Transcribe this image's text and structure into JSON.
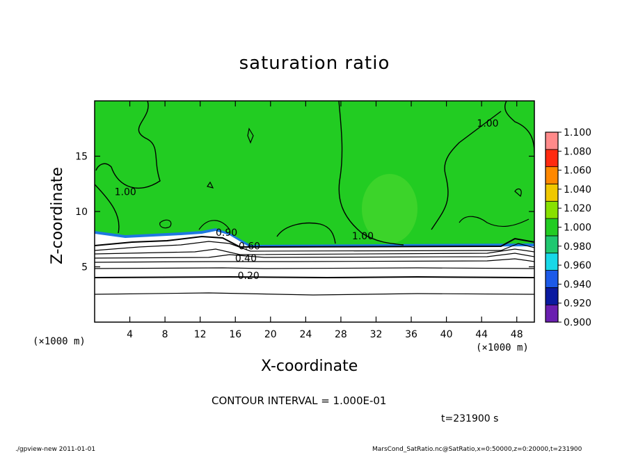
{
  "chart_data": {
    "type": "contour",
    "title": "saturation ratio",
    "xlabel": "X-coordinate",
    "ylabel": "Z-coordinate",
    "x_unit_label": "(×1000 m)",
    "xlim": [
      0,
      50
    ],
    "ylim": [
      0,
      20
    ],
    "xticks": [
      4,
      8,
      12,
      16,
      20,
      24,
      28,
      32,
      36,
      40,
      44,
      48
    ],
    "yticks": [
      5,
      10,
      15
    ],
    "colorbar": {
      "levels": [
        0.9,
        0.92,
        0.94,
        0.96,
        0.98,
        1.0,
        1.02,
        1.04,
        1.06,
        1.08,
        1.1
      ],
      "labels": [
        "0.900",
        "0.920",
        "0.940",
        "0.960",
        "0.980",
        "1.000",
        "1.020",
        "1.040",
        "1.060",
        "1.080",
        "1.100"
      ],
      "colors": [
        "#6a1fb0",
        "#0a1aa0",
        "#1c5ae8",
        "#18d8e8",
        "#20c870",
        "#22cc22",
        "#88e000",
        "#f0c800",
        "#ff8800",
        "#ff2a10",
        "#ff8a8a"
      ]
    },
    "contour_labels": [
      {
        "text": "0.20",
        "x": 17.5,
        "z": 4.2
      },
      {
        "text": "0.40",
        "x": 17.2,
        "z": 5.8
      },
      {
        "text": "0.60",
        "x": 17.6,
        "z": 6.9
      },
      {
        "text": "1.00",
        "x": 30.5,
        "z": 7.8
      },
      {
        "text": "1.00",
        "x": 44.7,
        "z": 18.0
      },
      {
        "text": "1.00",
        "x": 3.5,
        "z": 11.8
      },
      {
        "text": "0.90",
        "x": 15.0,
        "z": 8.1
      }
    ],
    "contour_interval": "CONTOUR INTERVAL = 1.000E-01",
    "time": "t=231900 s"
  },
  "footer": {
    "left": "./gpview-new   2011-01-01",
    "right": "MarsCond_SatRatio.nc@SatRatio,x=0:50000,z=0:20000,t=231900"
  }
}
